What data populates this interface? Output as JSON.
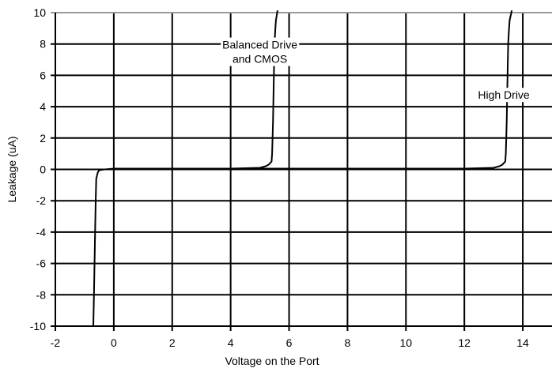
{
  "chart_data": {
    "type": "line",
    "title": "",
    "xlabel": "Voltage on the Port",
    "ylabel": "Leakage (uA)",
    "xlim": [
      -2,
      15
    ],
    "ylim": [
      -10,
      10
    ],
    "x_ticks": [
      -2,
      0,
      2,
      4,
      6,
      8,
      10,
      12,
      14
    ],
    "y_ticks": [
      -10,
      -8,
      -6,
      -4,
      -2,
      0,
      2,
      4,
      6,
      8,
      10
    ],
    "grid": true,
    "colors": {
      "line": "#000000",
      "grid": "#000000",
      "top_border": "#999999"
    },
    "series": [
      {
        "x": [
          -0.7,
          -0.68,
          -0.65,
          -0.62,
          -0.6,
          -0.55,
          -0.5,
          -0.3,
          0.0,
          0.5,
          4.0,
          5.0,
          5.2,
          5.3,
          5.4,
          5.42,
          5.45,
          5.48,
          5.5,
          5.53,
          5.55,
          5.6
        ],
        "y": [
          -10,
          -8,
          -5,
          -2,
          -0.6,
          -0.2,
          -0.05,
          0.0,
          0.05,
          0.05,
          0.05,
          0.1,
          0.2,
          0.3,
          0.5,
          1.0,
          3.0,
          6.0,
          8.0,
          9.0,
          9.5,
          10.1
        ]
      },
      {
        "x": [
          0.5,
          12.0,
          13.0,
          13.2,
          13.3,
          13.4,
          13.42,
          13.45,
          13.48,
          13.5,
          13.53,
          13.55,
          13.62
        ],
        "y": [
          0.05,
          0.05,
          0.1,
          0.2,
          0.3,
          0.5,
          1.0,
          3.0,
          6.0,
          8.0,
          9.0,
          9.5,
          10.1
        ]
      }
    ],
    "annotations": [
      {
        "id": "balanced",
        "lines": [
          "Balanced Drive",
          "and CMOS"
        ],
        "x": 5.0,
        "y": 7.5
      },
      {
        "id": "high",
        "lines": [
          "High Drive"
        ],
        "x": 13.35,
        "y": 4.75
      }
    ]
  }
}
